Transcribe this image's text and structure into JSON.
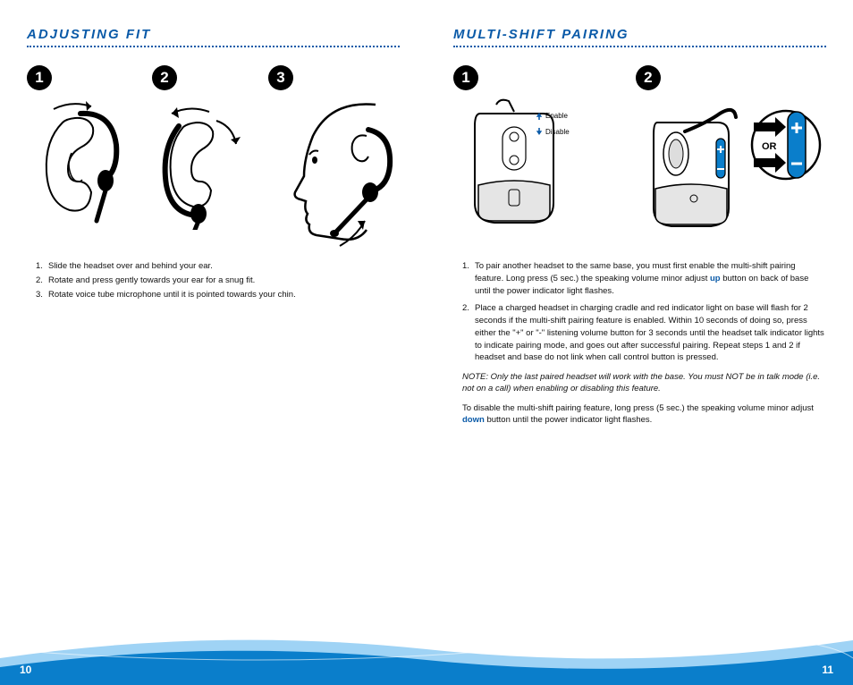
{
  "colors": {
    "accent": "#0a5aa8",
    "badge_bg": "#000000",
    "badge_fg": "#ffffff",
    "text": "#111111",
    "wave_light": "#9fd3f5",
    "wave_dark": "#0a7ecb"
  },
  "left": {
    "title": "ADJUSTING FIT",
    "steps": [
      "1",
      "2",
      "3"
    ],
    "instructions": [
      "Slide the headset over and behind your ear.",
      "Rotate and press gently towards your ear for a snug fit.",
      "Rotate voice tube microphone until it is pointed towards your chin."
    ],
    "page_number": "10"
  },
  "right": {
    "title": "MULTI-SHIFT PAIRING",
    "steps": [
      "1",
      "2"
    ],
    "enable_label": "Enable",
    "disable_label": "Disable",
    "or_label": "OR",
    "instructions": [
      "To pair another headset to the same base, you must first enable the multi-shift pairing feature. Long press (5 sec.) the speaking volume minor adjust up button on back of base until the power indicator light flashes.",
      "Place a charged headset in charging cradle and red indicator light on base will flash for 2 seconds if the multi-shift pairing feature is enabled. Within 10 seconds of doing so, press either the \"+\" or \"-\" listening volume button for 3 seconds until the headset talk indicator lights to indicate pairing mode, and goes out after successful pairing. Repeat steps 1 and 2 if headset and base do not link when call control button is pressed."
    ],
    "note": "NOTE: Only the last paired headset will work with the base. You must NOT be in talk mode (i.e. not on a call) when enabling or disabling this feature.",
    "disable_para_pre": "To disable the multi-shift pairing feature, long press (5 sec.) the speaking volume minor adjust ",
    "disable_para_word": "down",
    "disable_para_post": " button until the power indicator light flashes.",
    "up_word": "up",
    "page_number": "11"
  }
}
